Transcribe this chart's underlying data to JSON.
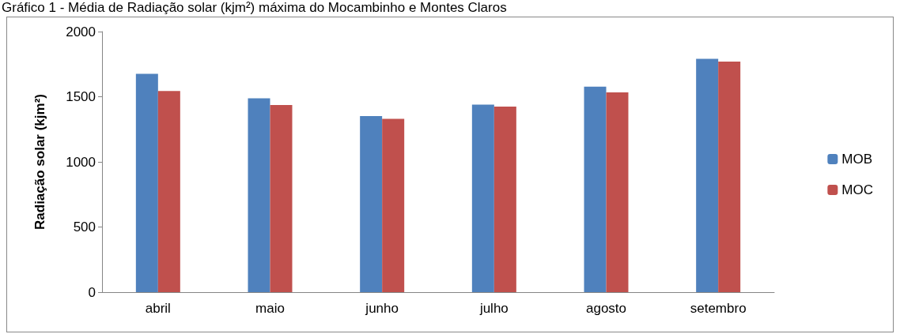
{
  "chart_data": {
    "type": "bar",
    "title": "Gráfico 1 - Média de Radiação solar (kjm²) máxima do Mocambinho e Montes Claros",
    "ylabel": "Radiação solar (kjm²)",
    "categories": [
      "abril",
      "maio",
      "junho",
      "julho",
      "agosto",
      "setembro"
    ],
    "series": [
      {
        "name": "MOB",
        "color": "#4f81bd",
        "values": [
          1676,
          1488,
          1352,
          1439,
          1578,
          1791
        ]
      },
      {
        "name": "MOC",
        "color": "#c0504d",
        "values": [
          1544,
          1436,
          1331,
          1425,
          1533,
          1770
        ]
      }
    ],
    "ylim": [
      0,
      2000
    ],
    "yticks": [
      0,
      500,
      1000,
      1500,
      2000
    ],
    "grid": false,
    "legend": "right"
  }
}
